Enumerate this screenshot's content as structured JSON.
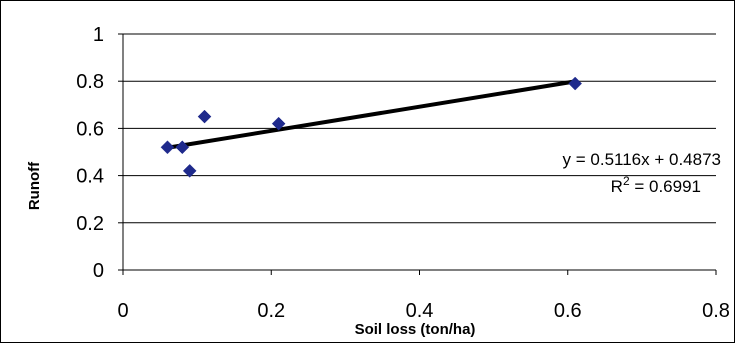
{
  "chart_data": {
    "type": "scatter",
    "title": "",
    "xlabel": "Soil loss (ton/ha)",
    "ylabel": "Runoff",
    "xlim": [
      0,
      0.8
    ],
    "ylim": [
      0,
      1
    ],
    "x_ticks": [
      "0",
      "0.2",
      "0.4",
      "0.6",
      "0.8"
    ],
    "y_ticks": [
      "0",
      "0.2",
      "0.4",
      "0.6",
      "0.8",
      "1"
    ],
    "grid": "horizontal",
    "points": [
      {
        "x": 0.06,
        "y": 0.52
      },
      {
        "x": 0.08,
        "y": 0.52
      },
      {
        "x": 0.09,
        "y": 0.42
      },
      {
        "x": 0.11,
        "y": 0.65
      },
      {
        "x": 0.21,
        "y": 0.62
      },
      {
        "x": 0.61,
        "y": 0.79
      }
    ],
    "trendline": {
      "type": "linear",
      "slope": 0.5116,
      "intercept": 0.4873,
      "x_range": [
        0.06,
        0.61
      ],
      "equation_label": "y = 0.5116x + 0.4873",
      "r2_label_prefix": "R",
      "r2_label_exponent": "2",
      "r2_label_value": " = 0.6991"
    },
    "marker_color": "#1F2A8C",
    "trendline_color": "#000000"
  }
}
